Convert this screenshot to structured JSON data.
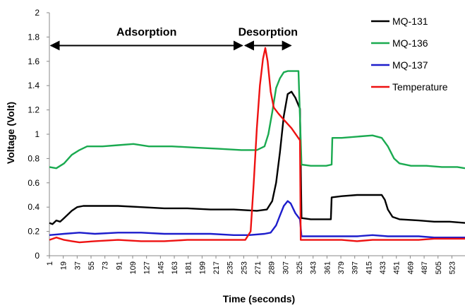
{
  "chart_data": {
    "type": "line",
    "xlabel": "Time (seconds)",
    "ylabel": "Voltage (Volt)",
    "ylim": [
      0,
      2
    ],
    "xlim": [
      1,
      540
    ],
    "y_ticks": [
      "0",
      "0.2",
      "0.4",
      "0.6",
      "0.8",
      "1",
      "1.2",
      "1.4",
      "1.6",
      "1.8",
      "2"
    ],
    "x_ticks": [
      "1",
      "19",
      "37",
      "55",
      "73",
      "91",
      "109",
      "127",
      "145",
      "163",
      "181",
      "199",
      "217",
      "235",
      "253",
      "271",
      "289",
      "307",
      "325",
      "343",
      "361",
      "379",
      "397",
      "415",
      "433",
      "451",
      "469",
      "487",
      "505",
      "523"
    ],
    "grid": "none",
    "legend_position": "top-right",
    "annotations": [
      {
        "text": "Adsorption",
        "x_start": 1,
        "x_end": 253,
        "y": 1.73
      },
      {
        "text": "Desorption",
        "x_start": 253,
        "x_end": 316,
        "y": 1.73
      }
    ],
    "series": [
      {
        "name": "MQ-131",
        "color": "#000000",
        "points": [
          [
            1,
            0.27
          ],
          [
            5,
            0.26
          ],
          [
            10,
            0.29
          ],
          [
            15,
            0.28
          ],
          [
            20,
            0.31
          ],
          [
            30,
            0.37
          ],
          [
            37,
            0.4
          ],
          [
            45,
            0.41
          ],
          [
            60,
            0.41
          ],
          [
            90,
            0.41
          ],
          [
            120,
            0.4
          ],
          [
            150,
            0.39
          ],
          [
            180,
            0.39
          ],
          [
            210,
            0.38
          ],
          [
            240,
            0.38
          ],
          [
            270,
            0.37
          ],
          [
            283,
            0.38
          ],
          [
            290,
            0.45
          ],
          [
            295,
            0.6
          ],
          [
            300,
            0.85
          ],
          [
            305,
            1.15
          ],
          [
            310,
            1.33
          ],
          [
            315,
            1.35
          ],
          [
            320,
            1.3
          ],
          [
            326,
            1.21
          ],
          [
            328,
            0.31
          ],
          [
            340,
            0.3
          ],
          [
            360,
            0.3
          ],
          [
            366,
            0.3
          ],
          [
            367,
            0.48
          ],
          [
            380,
            0.49
          ],
          [
            400,
            0.5
          ],
          [
            420,
            0.5
          ],
          [
            432,
            0.5
          ],
          [
            436,
            0.46
          ],
          [
            440,
            0.38
          ],
          [
            446,
            0.32
          ],
          [
            455,
            0.3
          ],
          [
            480,
            0.29
          ],
          [
            500,
            0.28
          ],
          [
            520,
            0.28
          ],
          [
            540,
            0.27
          ]
        ]
      },
      {
        "name": "MQ-136",
        "color": "#1aaa50",
        "points": [
          [
            1,
            0.73
          ],
          [
            10,
            0.72
          ],
          [
            20,
            0.76
          ],
          [
            30,
            0.83
          ],
          [
            40,
            0.87
          ],
          [
            50,
            0.9
          ],
          [
            70,
            0.9
          ],
          [
            90,
            0.91
          ],
          [
            110,
            0.92
          ],
          [
            130,
            0.9
          ],
          [
            160,
            0.9
          ],
          [
            190,
            0.89
          ],
          [
            220,
            0.88
          ],
          [
            250,
            0.87
          ],
          [
            270,
            0.87
          ],
          [
            280,
            0.9
          ],
          [
            285,
            1.0
          ],
          [
            290,
            1.18
          ],
          [
            295,
            1.38
          ],
          [
            300,
            1.46
          ],
          [
            305,
            1.51
          ],
          [
            310,
            1.52
          ],
          [
            320,
            1.52
          ],
          [
            324,
            1.52
          ],
          [
            328,
            0.75
          ],
          [
            340,
            0.74
          ],
          [
            360,
            0.74
          ],
          [
            367,
            0.75
          ],
          [
            368,
            0.97
          ],
          [
            380,
            0.97
          ],
          [
            400,
            0.98
          ],
          [
            420,
            0.99
          ],
          [
            432,
            0.97
          ],
          [
            440,
            0.9
          ],
          [
            448,
            0.8
          ],
          [
            455,
            0.76
          ],
          [
            470,
            0.74
          ],
          [
            490,
            0.74
          ],
          [
            510,
            0.73
          ],
          [
            530,
            0.73
          ],
          [
            540,
            0.72
          ]
        ]
      },
      {
        "name": "MQ-137",
        "color": "#1d1dcc",
        "points": [
          [
            1,
            0.17
          ],
          [
            20,
            0.18
          ],
          [
            40,
            0.19
          ],
          [
            60,
            0.18
          ],
          [
            90,
            0.19
          ],
          [
            120,
            0.19
          ],
          [
            150,
            0.18
          ],
          [
            180,
            0.18
          ],
          [
            210,
            0.18
          ],
          [
            240,
            0.17
          ],
          [
            260,
            0.17
          ],
          [
            280,
            0.18
          ],
          [
            288,
            0.19
          ],
          [
            295,
            0.25
          ],
          [
            300,
            0.33
          ],
          [
            305,
            0.41
          ],
          [
            310,
            0.45
          ],
          [
            314,
            0.43
          ],
          [
            320,
            0.35
          ],
          [
            326,
            0.3
          ],
          [
            328,
            0.16
          ],
          [
            340,
            0.16
          ],
          [
            360,
            0.16
          ],
          [
            380,
            0.16
          ],
          [
            400,
            0.16
          ],
          [
            420,
            0.17
          ],
          [
            440,
            0.16
          ],
          [
            460,
            0.16
          ],
          [
            480,
            0.16
          ],
          [
            500,
            0.15
          ],
          [
            520,
            0.15
          ],
          [
            540,
            0.15
          ]
        ]
      },
      {
        "name": "Temperature",
        "color": "#ee1111",
        "points": [
          [
            1,
            0.13
          ],
          [
            10,
            0.15
          ],
          [
            20,
            0.13
          ],
          [
            30,
            0.12
          ],
          [
            40,
            0.11
          ],
          [
            60,
            0.12
          ],
          [
            90,
            0.13
          ],
          [
            120,
            0.12
          ],
          [
            150,
            0.12
          ],
          [
            180,
            0.13
          ],
          [
            210,
            0.13
          ],
          [
            240,
            0.13
          ],
          [
            255,
            0.13
          ],
          [
            262,
            0.2
          ],
          [
            266,
            0.6
          ],
          [
            270,
            1.05
          ],
          [
            274,
            1.4
          ],
          [
            278,
            1.62
          ],
          [
            281,
            1.71
          ],
          [
            284,
            1.6
          ],
          [
            288,
            1.35
          ],
          [
            292,
            1.22
          ],
          [
            298,
            1.17
          ],
          [
            305,
            1.12
          ],
          [
            315,
            1.05
          ],
          [
            326,
            0.95
          ],
          [
            327,
            0.13
          ],
          [
            340,
            0.13
          ],
          [
            360,
            0.13
          ],
          [
            380,
            0.13
          ],
          [
            400,
            0.12
          ],
          [
            420,
            0.13
          ],
          [
            440,
            0.13
          ],
          [
            460,
            0.13
          ],
          [
            480,
            0.13
          ],
          [
            500,
            0.14
          ],
          [
            520,
            0.14
          ],
          [
            540,
            0.14
          ]
        ]
      }
    ]
  }
}
